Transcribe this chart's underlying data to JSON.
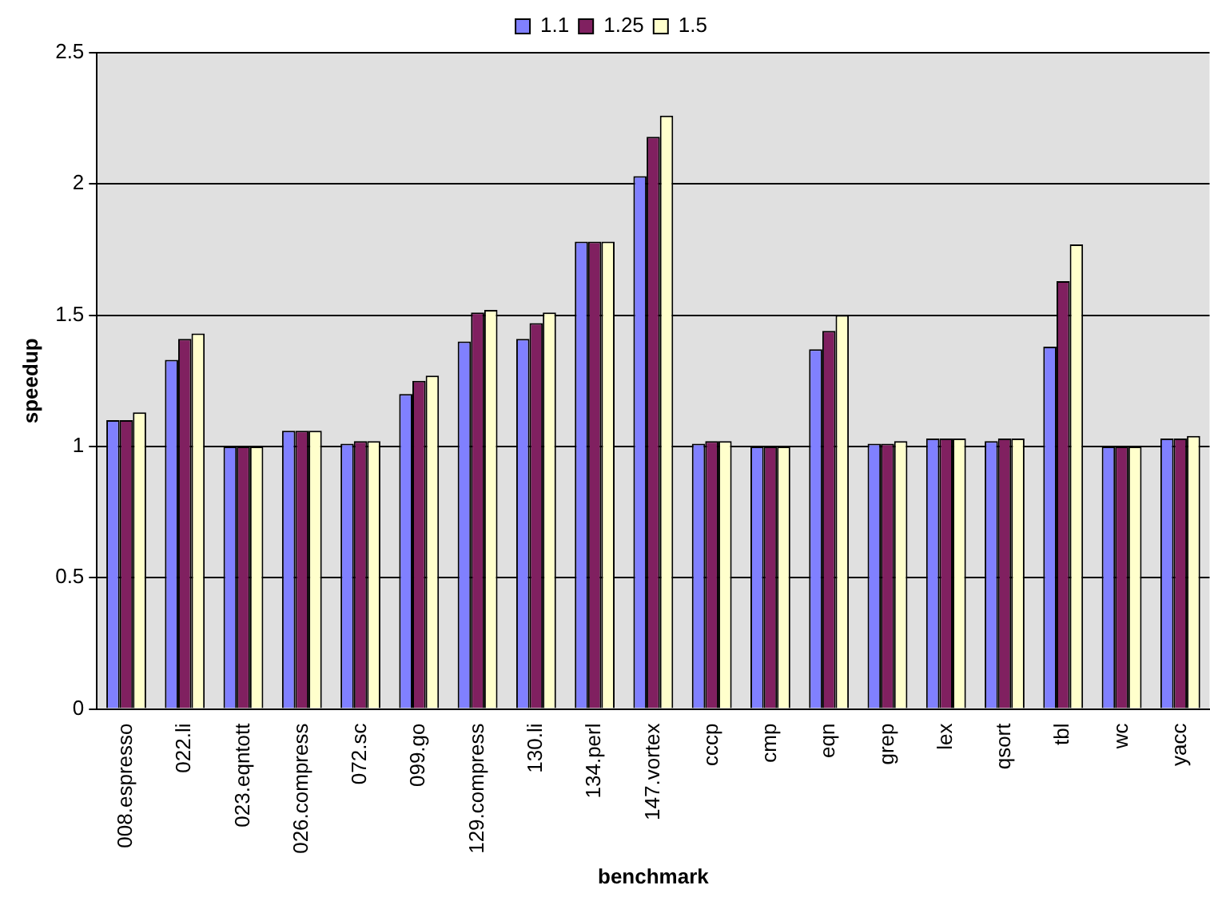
{
  "chart_data": {
    "type": "bar",
    "xlabel": "benchmark",
    "ylabel": "speedup",
    "categories": [
      "008.espresso",
      "022.li",
      "023.eqntott",
      "026.compress",
      "072.sc",
      "099.go",
      "129.compress",
      "130.li",
      "134.perl",
      "147.vortex",
      "cccp",
      "cmp",
      "eqn",
      "grep",
      "lex",
      "qsort",
      "tbl",
      "wc",
      "yacc"
    ],
    "series": [
      {
        "name": "1.1",
        "color": "#8080ff",
        "values": [
          1.1,
          1.33,
          1,
          1.06,
          1.01,
          1.2,
          1.4,
          1.41,
          1.78,
          2.03,
          1.01,
          1,
          1.37,
          1.01,
          1.03,
          1.02,
          1.38,
          1,
          1.03
        ]
      },
      {
        "name": "1.25",
        "color": "#802060",
        "values": [
          1.1,
          1.41,
          1,
          1.06,
          1.02,
          1.25,
          1.51,
          1.47,
          1.78,
          2.18,
          1.02,
          1,
          1.44,
          1.01,
          1.03,
          1.03,
          1.63,
          1,
          1.03
        ]
      },
      {
        "name": "1.5",
        "color": "#ffffcc",
        "values": [
          1.13,
          1.43,
          1,
          1.06,
          1.02,
          1.27,
          1.52,
          1.51,
          1.78,
          2.26,
          1.02,
          1,
          1.5,
          1.02,
          1.03,
          1.03,
          1.77,
          1,
          1.04
        ]
      }
    ],
    "ylim": [
      0,
      2.5
    ],
    "yticks": [
      0,
      0.5,
      1,
      1.5,
      2,
      2.5
    ],
    "grid": "y",
    "legend": "top"
  }
}
